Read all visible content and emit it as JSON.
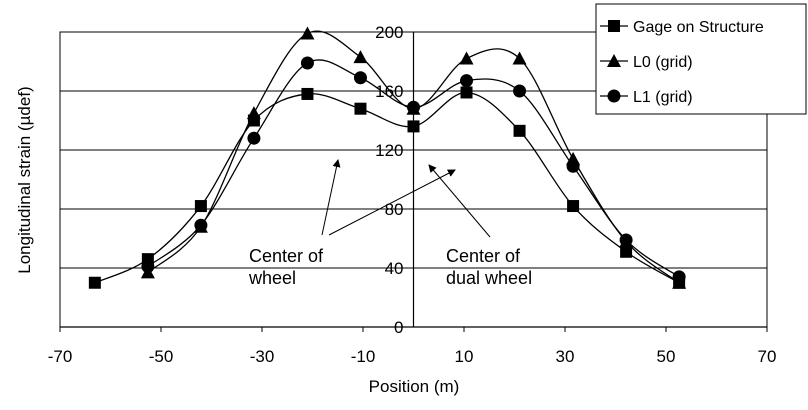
{
  "chart_data": {
    "type": "line",
    "title": "",
    "xlabel": "Position (m)",
    "ylabel": "Longitudinal strain (µdef)",
    "xlim": [
      -70,
      70
    ],
    "ylim": [
      0,
      200
    ],
    "xticks": [
      -70,
      -50,
      -30,
      -10,
      10,
      30,
      50,
      70
    ],
    "xtick_labels": [
      "-70",
      "-50",
      "-30",
      "-10",
      "10",
      "30",
      "50",
      "70"
    ],
    "yticks": [
      0,
      40,
      80,
      120,
      160,
      200
    ],
    "ytick_labels": [
      "0",
      "40",
      "80",
      "120",
      "160",
      "200"
    ],
    "grid": "horizontal",
    "legend_position": "top-right",
    "series": [
      {
        "name": "Gage on Structure",
        "marker": "square",
        "color": "#000000",
        "x": [
          -63.1,
          -52.6,
          -42.1,
          -31.6,
          -21.0,
          -10.5,
          0.0,
          10.5,
          21.0,
          31.6,
          42.1,
          52.6
        ],
        "y": [
          30,
          46,
          82,
          140,
          158,
          148,
          136,
          159,
          133,
          82,
          51,
          30
        ]
      },
      {
        "name": "L0 (grid)",
        "marker": "triangle",
        "color": "#000000",
        "x": [
          -52.6,
          -42.1,
          -31.6,
          -21.0,
          -10.5,
          0.0,
          10.5,
          21.0,
          31.6,
          42.1,
          52.6
        ],
        "y": [
          37,
          68,
          145,
          199,
          183,
          148,
          182,
          182,
          114,
          58,
          30
        ]
      },
      {
        "name": "L1 (grid)",
        "marker": "circle",
        "color": "#000000",
        "x": [
          -52.6,
          -42.1,
          -31.6,
          -21.0,
          -10.5,
          0.0,
          10.5,
          21.0,
          31.6,
          42.1,
          52.6
        ],
        "y": [
          41,
          69,
          128,
          179,
          169,
          149,
          167,
          160,
          109,
          59,
          34
        ]
      }
    ],
    "annotations": [
      {
        "lines": [
          "Center of",
          "wheel"
        ]
      },
      {
        "lines": [
          "Center of",
          "dual wheel"
        ]
      }
    ]
  }
}
